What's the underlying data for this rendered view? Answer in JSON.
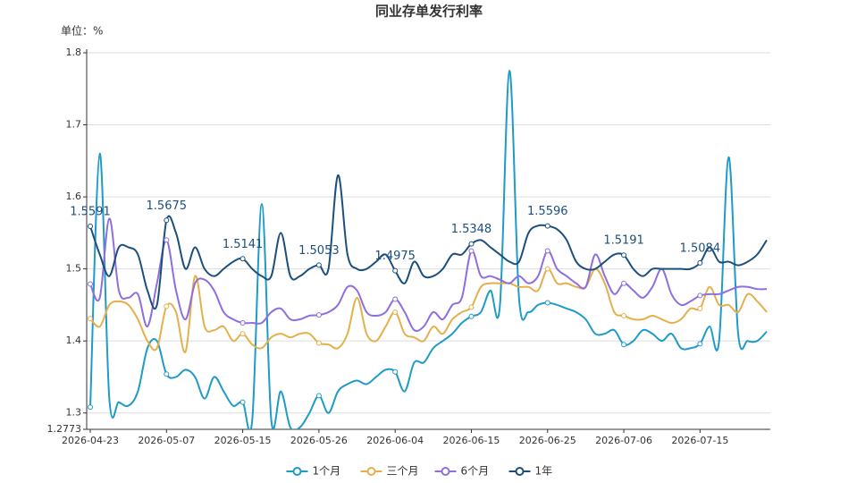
{
  "chart_data": {
    "type": "line",
    "title": "同业存单发行利率",
    "unit_label": "单位：%",
    "categories": [
      "2026-04-23",
      null,
      null,
      null,
      null,
      null,
      null,
      null,
      "2026-05-07",
      null,
      null,
      null,
      null,
      null,
      null,
      null,
      "2026-05-15",
      null,
      null,
      null,
      null,
      null,
      null,
      null,
      "2026-05-26",
      null,
      null,
      null,
      null,
      null,
      null,
      null,
      "2026-06-04",
      null,
      null,
      null,
      null,
      null,
      null,
      null,
      "2026-06-15",
      null,
      null,
      null,
      null,
      null,
      null,
      null,
      "2026-06-25",
      null,
      null,
      null,
      null,
      null,
      null,
      null,
      "2026-07-06",
      null,
      null,
      null,
      null,
      null,
      null,
      null,
      "2026-07-15",
      null,
      null,
      null,
      null,
      null,
      null,
      null
    ],
    "ylim": [
      1.2773,
      1.8
    ],
    "yticks": [
      1.2773,
      1.3,
      1.4,
      1.5,
      1.6,
      1.7,
      1.8
    ],
    "grid": true,
    "smooth": true,
    "legend": "bottom",
    "series": [
      {
        "name": "1个月",
        "color": "#1f9bc7",
        "values": [
          1.308,
          1.66,
          1.32,
          1.315,
          1.31,
          1.33,
          1.39,
          1.4,
          1.354,
          1.35,
          1.36,
          1.35,
          1.32,
          1.35,
          1.33,
          1.31,
          1.315,
          1.29,
          1.59,
          1.29,
          1.33,
          1.28,
          1.28,
          1.3,
          1.324,
          1.3,
          1.33,
          1.34,
          1.345,
          1.34,
          1.35,
          1.36,
          1.357,
          1.33,
          1.37,
          1.37,
          1.39,
          1.4,
          1.41,
          1.425,
          1.434,
          1.44,
          1.47,
          1.45,
          1.775,
          1.46,
          1.44,
          1.45,
          1.453,
          1.45,
          1.445,
          1.44,
          1.43,
          1.41,
          1.41,
          1.415,
          1.395,
          1.4,
          1.415,
          1.41,
          1.4,
          1.41,
          1.39,
          1.39,
          1.396,
          1.42,
          1.4,
          1.655,
          1.41,
          1.4,
          1.4,
          1.413
        ]
      },
      {
        "name": "三个月",
        "color": "#e3b04b",
        "values": [
          1.431,
          1.42,
          1.45,
          1.455,
          1.45,
          1.43,
          1.4,
          1.39,
          1.448,
          1.44,
          1.385,
          1.49,
          1.42,
          1.415,
          1.42,
          1.4,
          1.41,
          1.395,
          1.39,
          1.405,
          1.41,
          1.405,
          1.41,
          1.41,
          1.397,
          1.395,
          1.39,
          1.41,
          1.46,
          1.41,
          1.4,
          1.42,
          1.44,
          1.41,
          1.405,
          1.4,
          1.42,
          1.41,
          1.43,
          1.44,
          1.447,
          1.475,
          1.48,
          1.48,
          1.48,
          1.475,
          1.475,
          1.47,
          1.5,
          1.48,
          1.48,
          1.475,
          1.475,
          1.5,
          1.48,
          1.44,
          1.435,
          1.43,
          1.43,
          1.435,
          1.43,
          1.425,
          1.43,
          1.445,
          1.445,
          1.475,
          1.45,
          1.45,
          1.44,
          1.465,
          1.455,
          1.44
        ]
      },
      {
        "name": "6个月",
        "color": "#8e6ee0",
        "values": [
          1.479,
          1.46,
          1.57,
          1.47,
          1.46,
          1.465,
          1.42,
          1.48,
          1.54,
          1.47,
          1.43,
          1.48,
          1.485,
          1.47,
          1.44,
          1.43,
          1.425,
          1.425,
          1.425,
          1.44,
          1.445,
          1.43,
          1.43,
          1.435,
          1.436,
          1.44,
          1.45,
          1.475,
          1.47,
          1.44,
          1.435,
          1.44,
          1.458,
          1.44,
          1.415,
          1.42,
          1.44,
          1.43,
          1.45,
          1.46,
          1.525,
          1.49,
          1.49,
          1.485,
          1.48,
          1.49,
          1.48,
          1.49,
          1.525,
          1.5,
          1.49,
          1.48,
          1.475,
          1.52,
          1.49,
          1.465,
          1.48,
          1.47,
          1.46,
          1.475,
          1.5,
          1.465,
          1.45,
          1.455,
          1.463,
          1.465,
          1.465,
          1.47,
          1.475,
          1.475,
          1.472,
          1.472
        ]
      },
      {
        "name": "1年",
        "color": "#1d4f7c",
        "show_labels": true,
        "values": [
          1.5591,
          1.52,
          1.49,
          1.53,
          1.53,
          1.52,
          1.47,
          1.45,
          1.5675,
          1.55,
          1.5,
          1.53,
          1.5,
          1.49,
          1.5,
          1.51,
          1.5141,
          1.5,
          1.49,
          1.49,
          1.55,
          1.49,
          1.49,
          1.5,
          1.5053,
          1.5,
          1.63,
          1.52,
          1.5,
          1.5,
          1.51,
          1.52,
          1.4975,
          1.48,
          1.51,
          1.49,
          1.49,
          1.5,
          1.52,
          1.52,
          1.5348,
          1.54,
          1.53,
          1.52,
          1.51,
          1.51,
          1.55,
          1.56,
          1.5596,
          1.555,
          1.54,
          1.51,
          1.5,
          1.5,
          1.51,
          1.52,
          1.5191,
          1.5,
          1.49,
          1.5,
          1.5,
          1.5,
          1.5,
          1.5,
          1.5084,
          1.53,
          1.51,
          1.51,
          1.505,
          1.51,
          1.52,
          1.54
        ]
      }
    ]
  }
}
